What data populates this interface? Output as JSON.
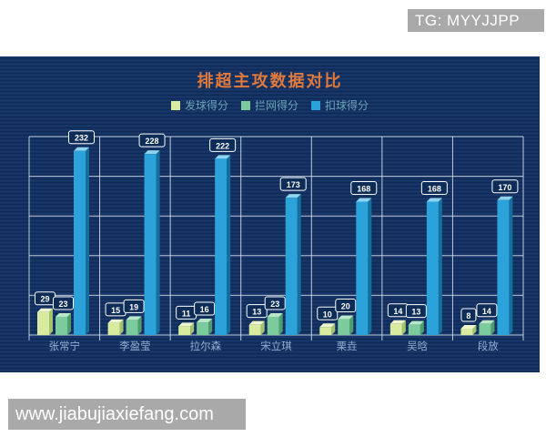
{
  "watermarks": {
    "top_right": "TG: MYYJJPP",
    "bottom_left": "www.jiabujiaxiefang.com"
  },
  "chart_data": {
    "type": "bar",
    "title": "排超主攻数据对比",
    "categories": [
      "张常宁",
      "李盈莹",
      "拉尔森",
      "宋立琪",
      "栗垚",
      "吴晗",
      "段放"
    ],
    "series": [
      {
        "name": "发球得分",
        "color": "#d8eb9f",
        "side_color": "#a3c370",
        "top_color": "#ecf5cb",
        "values": [
          29,
          15,
          11,
          13,
          10,
          14,
          8
        ]
      },
      {
        "name": "拦网得分",
        "color": "#7ccb9c",
        "side_color": "#4e9e6f",
        "top_color": "#b9e7ca",
        "values": [
          23,
          19,
          16,
          23,
          20,
          13,
          14
        ]
      },
      {
        "name": "扣球得分",
        "color": "#2ba2d9",
        "side_color": "#146f9f",
        "top_color": "#8ed4ef",
        "values": [
          232,
          228,
          222,
          173,
          168,
          168,
          170
        ]
      }
    ],
    "ylim": [
      0,
      250
    ],
    "grid_step": 50,
    "grid": true,
    "legend_position": "top",
    "value_labels": true
  },
  "colors": {
    "panel_background": "#143468",
    "title": "#e0793c",
    "legend_text": "#6ba3b8",
    "grid_line": "#dce6f2",
    "category_label": "#93aed2",
    "value_label_bg": "#0d2c57",
    "value_label_border": "#ffffff",
    "watermark_bg": "#a9a9a9",
    "watermark_text": "#ffffff"
  }
}
